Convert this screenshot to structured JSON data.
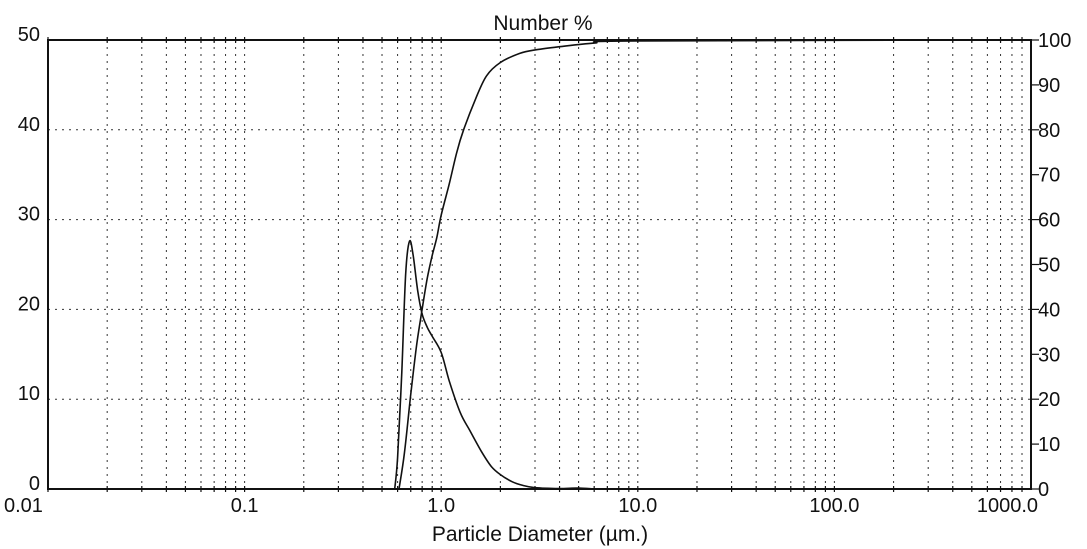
{
  "chart_data": {
    "type": "line",
    "title": "Number %",
    "xlabel": "Particle Diameter (µm.)",
    "x_scale": "log",
    "xlim": [
      0.01,
      1000
    ],
    "x_ticks": [
      0.01,
      0.1,
      1.0,
      10.0,
      100.0,
      1000.0
    ],
    "x_tick_labels": [
      "0.01",
      "0.1",
      "1.0",
      "10.0",
      "100.0",
      "1000.0"
    ],
    "ylim_left": [
      0,
      50
    ],
    "y_ticks_left": [
      0,
      10,
      20,
      30,
      40,
      50
    ],
    "y_tick_labels_left": [
      "0",
      "10",
      "20",
      "30",
      "40",
      "50"
    ],
    "ylim_right": [
      0,
      100
    ],
    "y_ticks_right": [
      0,
      10,
      20,
      30,
      40,
      50,
      60,
      70,
      80,
      90,
      100
    ],
    "y_tick_labels_right": [
      "0",
      "10",
      "20",
      "30",
      "40",
      "50",
      "60",
      "70",
      "80",
      "90",
      "100"
    ],
    "grid": true,
    "legend": "none",
    "series": [
      {
        "axis": "left",
        "x": [
          0.58,
          0.6,
          0.63,
          0.66,
          0.69,
          0.72,
          0.76,
          0.8,
          0.85,
          0.9,
          1.0,
          1.1,
          1.25,
          1.4,
          1.6,
          1.8,
          2.0,
          2.3,
          2.6,
          3.0,
          4.0,
          5.0,
          6.0
        ],
        "y": [
          0,
          3.5,
          13,
          24,
          27.6,
          26,
          22,
          19.5,
          18,
          17,
          15.2,
          12,
          8.5,
          6.5,
          4.2,
          2.5,
          1.6,
          0.8,
          0.4,
          0.15,
          0.05,
          0.1,
          0
        ]
      },
      {
        "axis": "right",
        "x": [
          0.61,
          0.65,
          0.7,
          0.75,
          0.8,
          0.85,
          0.9,
          0.95,
          1.0,
          1.1,
          1.2,
          1.3,
          1.5,
          1.7,
          2.0,
          2.5,
          3.0,
          4.0,
          6.0,
          10.0,
          1000.0
        ],
        "y": [
          0,
          8,
          21,
          32,
          40,
          47,
          52,
          56,
          61,
          68,
          75,
          80,
          87,
          92,
          95,
          97,
          97.8,
          98.5,
          99.3,
          99.8,
          100
        ]
      }
    ]
  }
}
